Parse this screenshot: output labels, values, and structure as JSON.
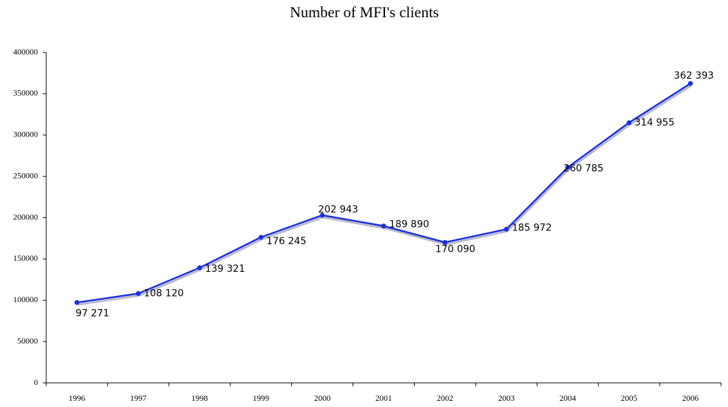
{
  "chart_data": {
    "type": "line",
    "title": "Number of MFI's clients",
    "categories": [
      "1996",
      "1997",
      "1998",
      "1999",
      "2000",
      "2001",
      "2002",
      "2003",
      "2004",
      "2005",
      "2006"
    ],
    "series": [
      {
        "color": "#1a2fdc",
        "values": [
          97271,
          108120,
          139321,
          176245,
          202943,
          189890,
          170090,
          185972,
          260785,
          314955,
          362393
        ],
        "value_labels": [
          "97 271",
          "108 120",
          "139 321",
          "176 245",
          "202 943",
          "189 890",
          "170 090",
          "185 972",
          "260 785",
          "314 955",
          "362 393"
        ]
      }
    ],
    "ylim": [
      0,
      400000
    ],
    "yticks": [
      0,
      50000,
      100000,
      150000,
      200000,
      250000,
      300000,
      350000,
      400000
    ]
  }
}
